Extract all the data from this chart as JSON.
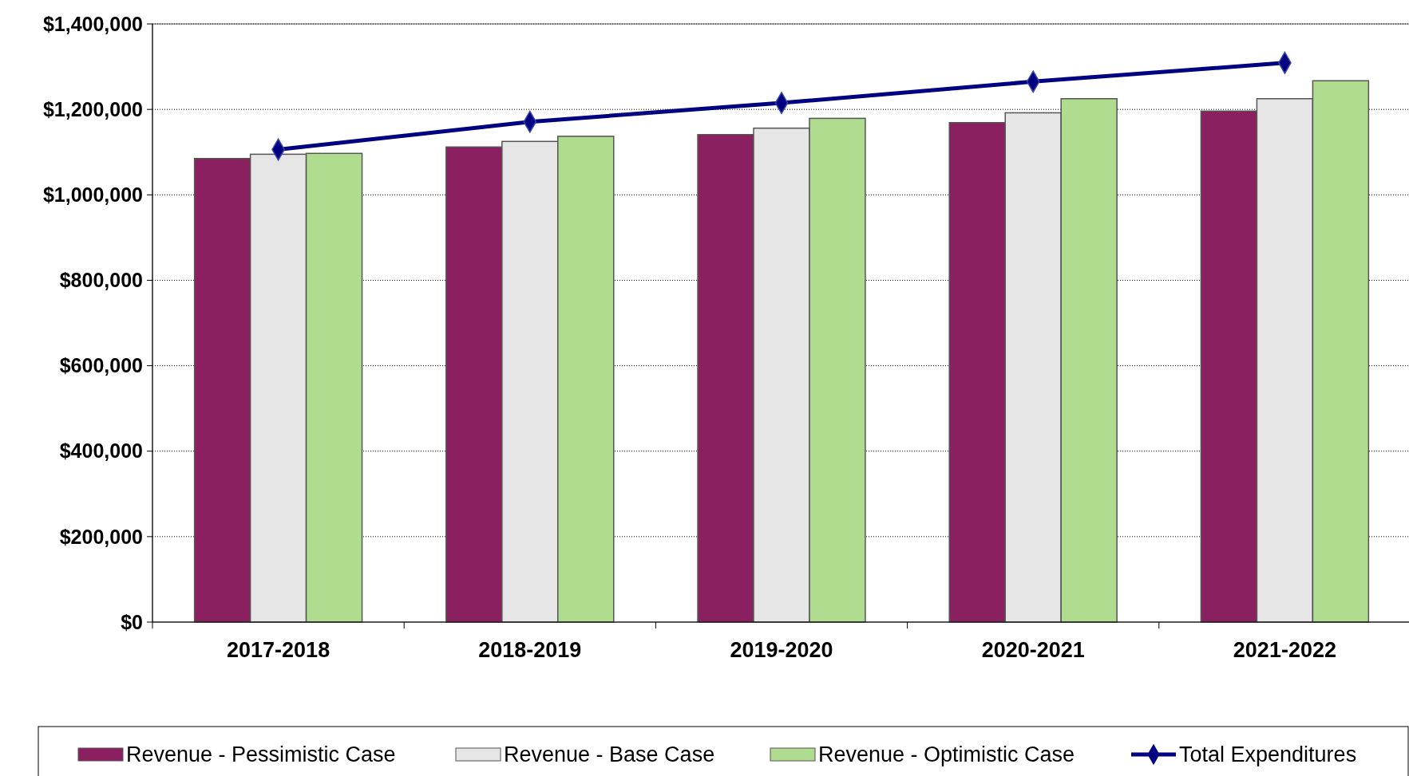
{
  "chart_data": {
    "type": "bar",
    "categories": [
      "2017-2018",
      "2018-2019",
      "2019-2020",
      "2020-2021",
      "2021-2022"
    ],
    "series": [
      {
        "name": "Revenue - Pessimistic Case",
        "color": "#8b2060",
        "values": [
          1085000,
          1112000,
          1141000,
          1169000,
          1196000
        ]
      },
      {
        "name": "Revenue - Base Case",
        "color": "#e6e6e6",
        "values": [
          1095000,
          1125000,
          1156000,
          1192000,
          1225000
        ]
      },
      {
        "name": "Revenue - Optimistic Case",
        "color": "#b0dc90",
        "values": [
          1097000,
          1137000,
          1179000,
          1225000,
          1267000
        ]
      },
      {
        "name": "Total Expenditures",
        "type": "line",
        "color": "#000080",
        "marker": "diamond",
        "values": [
          1106000,
          1171000,
          1215000,
          1265000,
          1309000
        ]
      }
    ],
    "ylim": [
      0,
      1400000
    ],
    "yticks": [
      {
        "value": 0,
        "label": "$0"
      },
      {
        "value": 200000,
        "label": "$200,000"
      },
      {
        "value": 400000,
        "label": "$400,000"
      },
      {
        "value": 600000,
        "label": "$600,000"
      },
      {
        "value": 800000,
        "label": "$800,000"
      },
      {
        "value": 1000000,
        "label": "$1,000,000"
      },
      {
        "value": 1200000,
        "label": "$1,200,000"
      },
      {
        "value": 1400000,
        "label": "$1,400,000"
      }
    ],
    "grid": "y",
    "legend": "bottom"
  }
}
